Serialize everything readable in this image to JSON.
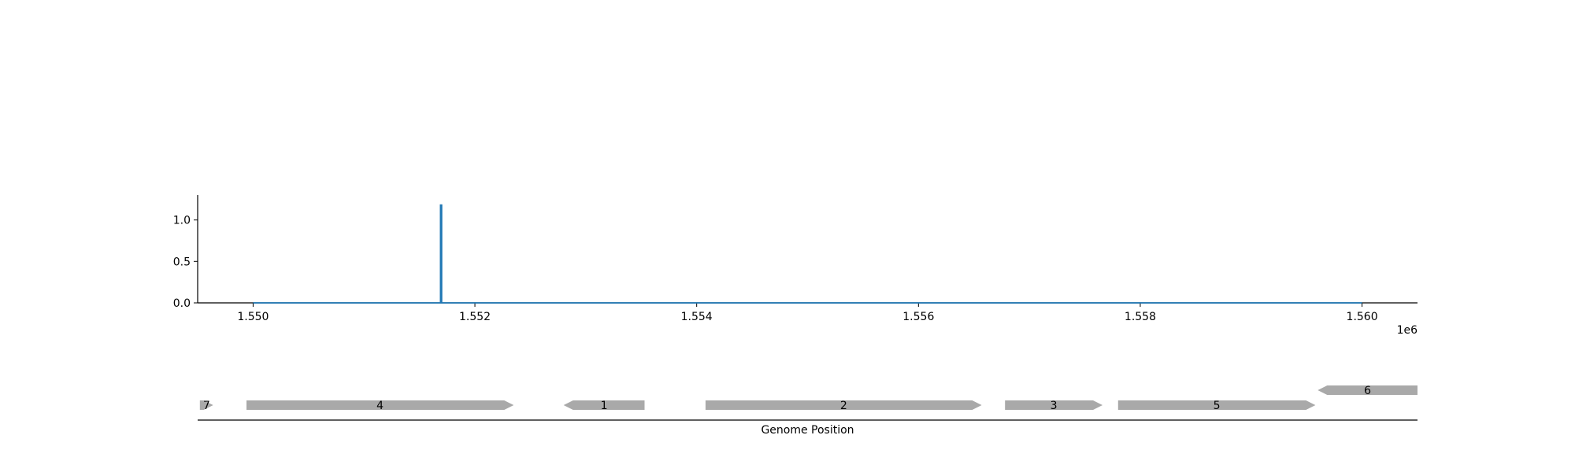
{
  "chart_data": [
    {
      "type": "line",
      "panel": "coverage",
      "title": "",
      "xlabel": "",
      "ylabel": "",
      "x_offset_label": "1e6",
      "xlim": [
        1549500,
        1560500
      ],
      "ylim": [
        0,
        1.3
      ],
      "x_ticks": [
        1550000,
        1552000,
        1554000,
        1556000,
        1558000,
        1560000
      ],
      "x_tick_labels": [
        "1.550",
        "1.552",
        "1.554",
        "1.556",
        "1.558",
        "1.560"
      ],
      "y_ticks": [
        0.0,
        0.5,
        1.0
      ],
      "y_tick_labels": [
        "0.0",
        "0.5",
        "1.0"
      ],
      "grid": false,
      "series": [
        {
          "color": "#1f77b4",
          "x": [
            1550000,
            1551690,
            1551690,
            1551700,
            1551700,
            1560000
          ],
          "y": [
            0,
            0,
            1.18,
            1.18,
            0,
            0
          ]
        }
      ]
    },
    {
      "type": "gene_track",
      "panel": "genes",
      "xlabel": "Genome Position",
      "xlim": [
        1549500,
        1560500
      ],
      "color": "#a9a9a9",
      "genes": [
        {
          "label": "7",
          "start": 1549520,
          "end": 1549640,
          "strand": "+",
          "row": 0
        },
        {
          "label": "4",
          "start": 1549940,
          "end": 1552350,
          "strand": "+",
          "row": 0
        },
        {
          "label": "1",
          "start": 1552800,
          "end": 1553530,
          "strand": "-",
          "row": 0
        },
        {
          "label": "2",
          "start": 1554080,
          "end": 1556570,
          "strand": "+",
          "row": 0
        },
        {
          "label": "3",
          "start": 1556780,
          "end": 1557660,
          "strand": "+",
          "row": 0
        },
        {
          "label": "5",
          "start": 1557800,
          "end": 1559580,
          "strand": "+",
          "row": 0
        },
        {
          "label": "6",
          "start": 1559600,
          "end": 1560500,
          "strand": "-",
          "row": 1
        }
      ]
    }
  ]
}
